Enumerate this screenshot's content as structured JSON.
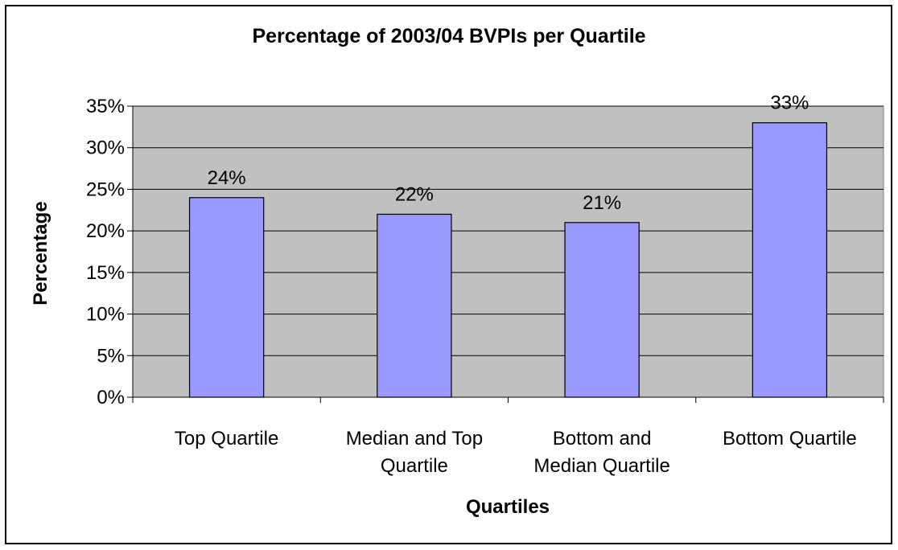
{
  "chart_data": {
    "type": "bar",
    "title": "Percentage of 2003/04 BVPIs per Quartile",
    "xlabel": "Quartiles",
    "ylabel": "Percentage",
    "categories": [
      [
        "Top Quartile"
      ],
      [
        "Median and Top",
        "Quartile"
      ],
      [
        "Bottom and",
        "Median Quartile"
      ],
      [
        "Bottom Quartile"
      ]
    ],
    "values": [
      24,
      22,
      21,
      33
    ],
    "data_labels": [
      "24%",
      "22%",
      "21%",
      "33%"
    ],
    "ylim": [
      0,
      35
    ],
    "yticks": [
      0,
      5,
      10,
      15,
      20,
      25,
      30,
      35
    ],
    "ytick_labels": [
      "0%",
      "5%",
      "10%",
      "15%",
      "20%",
      "25%",
      "30%",
      "35%"
    ],
    "grid": true,
    "legend": "none",
    "colors": {
      "bar_fill": "#9999ff",
      "plot_background": "#c0c0c0",
      "gridline": "#000000"
    }
  }
}
